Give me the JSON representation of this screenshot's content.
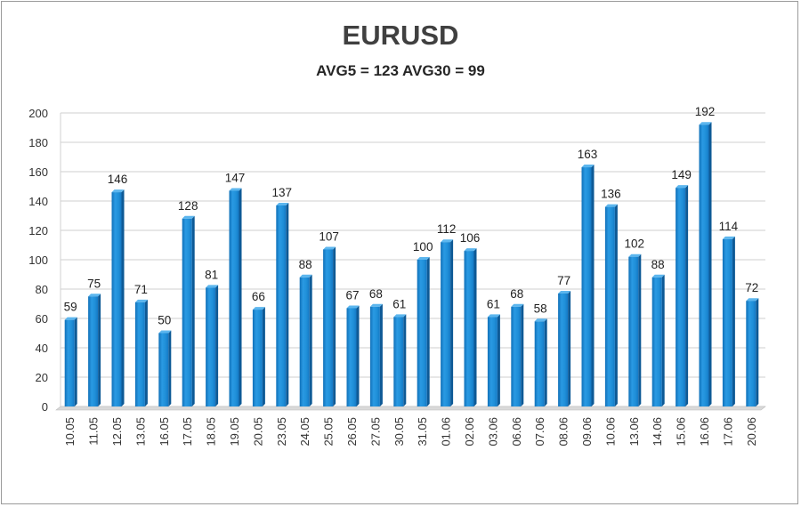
{
  "chart_data": {
    "type": "bar",
    "title": "EURUSD",
    "subtitle": "AVG5 = 123 AVG30 = 99",
    "categories": [
      "10.05",
      "11.05",
      "12.05",
      "13.05",
      "16.05",
      "17.05",
      "18.05",
      "19.05",
      "20.05",
      "23.05",
      "24.05",
      "25.05",
      "26.05",
      "27.05",
      "30.05",
      "31.05",
      "01.06",
      "02.06",
      "03.06",
      "06.06",
      "07.06",
      "08.06",
      "09.06",
      "10.06",
      "13.06",
      "14.06",
      "15.06",
      "16.06",
      "17.06",
      "20.06"
    ],
    "values": [
      59,
      75,
      146,
      71,
      50,
      128,
      81,
      147,
      66,
      137,
      88,
      107,
      67,
      68,
      61,
      100,
      112,
      106,
      61,
      68,
      58,
      77,
      163,
      136,
      102,
      88,
      149,
      192,
      114,
      72
    ],
    "yticks": [
      0,
      20,
      40,
      60,
      80,
      100,
      120,
      140,
      160,
      180,
      200
    ],
    "ylim": [
      0,
      200
    ],
    "grid": true,
    "legend": "none",
    "bar_color": "#1f8fd8",
    "bar_side_color": "#0e5a96",
    "bar_top_color": "#5cb6ee"
  }
}
